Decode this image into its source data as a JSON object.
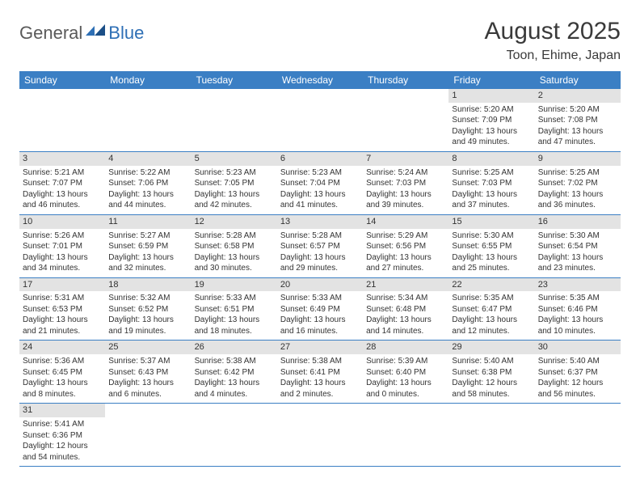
{
  "logo": {
    "part1": "General",
    "part2": "Blue"
  },
  "title": "August 2025",
  "location": "Toon, Ehime, Japan",
  "colors": {
    "header_bg": "#3b7fc4",
    "header_text": "#ffffff",
    "daynum_bg": "#e3e3e3",
    "row_border": "#3b7fc4",
    "text": "#333333",
    "logo_gray": "#5a5a5a",
    "logo_blue": "#2e6fb5",
    "background": "#ffffff"
  },
  "day_names": [
    "Sunday",
    "Monday",
    "Tuesday",
    "Wednesday",
    "Thursday",
    "Friday",
    "Saturday"
  ],
  "weeks": [
    [
      {
        "empty": true
      },
      {
        "empty": true
      },
      {
        "empty": true
      },
      {
        "empty": true
      },
      {
        "empty": true
      },
      {
        "num": "1",
        "sunrise": "Sunrise: 5:20 AM",
        "sunset": "Sunset: 7:09 PM",
        "daylight": "Daylight: 13 hours and 49 minutes."
      },
      {
        "num": "2",
        "sunrise": "Sunrise: 5:20 AM",
        "sunset": "Sunset: 7:08 PM",
        "daylight": "Daylight: 13 hours and 47 minutes."
      }
    ],
    [
      {
        "num": "3",
        "sunrise": "Sunrise: 5:21 AM",
        "sunset": "Sunset: 7:07 PM",
        "daylight": "Daylight: 13 hours and 46 minutes."
      },
      {
        "num": "4",
        "sunrise": "Sunrise: 5:22 AM",
        "sunset": "Sunset: 7:06 PM",
        "daylight": "Daylight: 13 hours and 44 minutes."
      },
      {
        "num": "5",
        "sunrise": "Sunrise: 5:23 AM",
        "sunset": "Sunset: 7:05 PM",
        "daylight": "Daylight: 13 hours and 42 minutes."
      },
      {
        "num": "6",
        "sunrise": "Sunrise: 5:23 AM",
        "sunset": "Sunset: 7:04 PM",
        "daylight": "Daylight: 13 hours and 41 minutes."
      },
      {
        "num": "7",
        "sunrise": "Sunrise: 5:24 AM",
        "sunset": "Sunset: 7:03 PM",
        "daylight": "Daylight: 13 hours and 39 minutes."
      },
      {
        "num": "8",
        "sunrise": "Sunrise: 5:25 AM",
        "sunset": "Sunset: 7:03 PM",
        "daylight": "Daylight: 13 hours and 37 minutes."
      },
      {
        "num": "9",
        "sunrise": "Sunrise: 5:25 AM",
        "sunset": "Sunset: 7:02 PM",
        "daylight": "Daylight: 13 hours and 36 minutes."
      }
    ],
    [
      {
        "num": "10",
        "sunrise": "Sunrise: 5:26 AM",
        "sunset": "Sunset: 7:01 PM",
        "daylight": "Daylight: 13 hours and 34 minutes."
      },
      {
        "num": "11",
        "sunrise": "Sunrise: 5:27 AM",
        "sunset": "Sunset: 6:59 PM",
        "daylight": "Daylight: 13 hours and 32 minutes."
      },
      {
        "num": "12",
        "sunrise": "Sunrise: 5:28 AM",
        "sunset": "Sunset: 6:58 PM",
        "daylight": "Daylight: 13 hours and 30 minutes."
      },
      {
        "num": "13",
        "sunrise": "Sunrise: 5:28 AM",
        "sunset": "Sunset: 6:57 PM",
        "daylight": "Daylight: 13 hours and 29 minutes."
      },
      {
        "num": "14",
        "sunrise": "Sunrise: 5:29 AM",
        "sunset": "Sunset: 6:56 PM",
        "daylight": "Daylight: 13 hours and 27 minutes."
      },
      {
        "num": "15",
        "sunrise": "Sunrise: 5:30 AM",
        "sunset": "Sunset: 6:55 PM",
        "daylight": "Daylight: 13 hours and 25 minutes."
      },
      {
        "num": "16",
        "sunrise": "Sunrise: 5:30 AM",
        "sunset": "Sunset: 6:54 PM",
        "daylight": "Daylight: 13 hours and 23 minutes."
      }
    ],
    [
      {
        "num": "17",
        "sunrise": "Sunrise: 5:31 AM",
        "sunset": "Sunset: 6:53 PM",
        "daylight": "Daylight: 13 hours and 21 minutes."
      },
      {
        "num": "18",
        "sunrise": "Sunrise: 5:32 AM",
        "sunset": "Sunset: 6:52 PM",
        "daylight": "Daylight: 13 hours and 19 minutes."
      },
      {
        "num": "19",
        "sunrise": "Sunrise: 5:33 AM",
        "sunset": "Sunset: 6:51 PM",
        "daylight": "Daylight: 13 hours and 18 minutes."
      },
      {
        "num": "20",
        "sunrise": "Sunrise: 5:33 AM",
        "sunset": "Sunset: 6:49 PM",
        "daylight": "Daylight: 13 hours and 16 minutes."
      },
      {
        "num": "21",
        "sunrise": "Sunrise: 5:34 AM",
        "sunset": "Sunset: 6:48 PM",
        "daylight": "Daylight: 13 hours and 14 minutes."
      },
      {
        "num": "22",
        "sunrise": "Sunrise: 5:35 AM",
        "sunset": "Sunset: 6:47 PM",
        "daylight": "Daylight: 13 hours and 12 minutes."
      },
      {
        "num": "23",
        "sunrise": "Sunrise: 5:35 AM",
        "sunset": "Sunset: 6:46 PM",
        "daylight": "Daylight: 13 hours and 10 minutes."
      }
    ],
    [
      {
        "num": "24",
        "sunrise": "Sunrise: 5:36 AM",
        "sunset": "Sunset: 6:45 PM",
        "daylight": "Daylight: 13 hours and 8 minutes."
      },
      {
        "num": "25",
        "sunrise": "Sunrise: 5:37 AM",
        "sunset": "Sunset: 6:43 PM",
        "daylight": "Daylight: 13 hours and 6 minutes."
      },
      {
        "num": "26",
        "sunrise": "Sunrise: 5:38 AM",
        "sunset": "Sunset: 6:42 PM",
        "daylight": "Daylight: 13 hours and 4 minutes."
      },
      {
        "num": "27",
        "sunrise": "Sunrise: 5:38 AM",
        "sunset": "Sunset: 6:41 PM",
        "daylight": "Daylight: 13 hours and 2 minutes."
      },
      {
        "num": "28",
        "sunrise": "Sunrise: 5:39 AM",
        "sunset": "Sunset: 6:40 PM",
        "daylight": "Daylight: 13 hours and 0 minutes."
      },
      {
        "num": "29",
        "sunrise": "Sunrise: 5:40 AM",
        "sunset": "Sunset: 6:38 PM",
        "daylight": "Daylight: 12 hours and 58 minutes."
      },
      {
        "num": "30",
        "sunrise": "Sunrise: 5:40 AM",
        "sunset": "Sunset: 6:37 PM",
        "daylight": "Daylight: 12 hours and 56 minutes."
      }
    ],
    [
      {
        "num": "31",
        "sunrise": "Sunrise: 5:41 AM",
        "sunset": "Sunset: 6:36 PM",
        "daylight": "Daylight: 12 hours and 54 minutes."
      },
      {
        "empty": true
      },
      {
        "empty": true
      },
      {
        "empty": true
      },
      {
        "empty": true
      },
      {
        "empty": true
      },
      {
        "empty": true
      }
    ]
  ]
}
